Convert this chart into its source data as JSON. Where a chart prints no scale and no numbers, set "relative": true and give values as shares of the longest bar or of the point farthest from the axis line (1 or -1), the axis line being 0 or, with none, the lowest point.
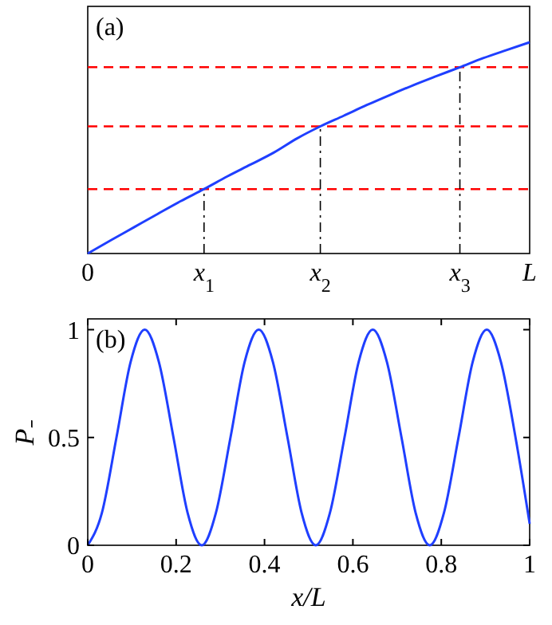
{
  "chart_data": [
    {
      "type": "line",
      "relative": true,
      "categories": [
        "0",
        null,
        null,
        null,
        null,
        "x$_{1}$",
        null,
        null,
        null,
        null,
        "x$_{2}$",
        null,
        null,
        null,
        null,
        null,
        "x$_{3}$",
        null,
        null,
        "L"
      ],
      "series": [
        {
          "color": "#1f3fff",
          "values": [
            0,
            0.063,
            0.125,
            0.187,
            0.248,
            0.305,
            0.365,
            0.421,
            0.478,
            0.545,
            0.602,
            0.652,
            0.703,
            0.751,
            0.797,
            0.84,
            0.882,
            0.925,
            0.963,
            1
          ]
        }
      ],
      "ref_lines": [
        {
          "axis": "y",
          "value": 0.305,
          "color": "#ff0000",
          "line_style": "dashed"
        },
        {
          "axis": "y",
          "value": 0.602,
          "color": "#ff0000",
          "line_style": "dashed"
        },
        {
          "axis": "y",
          "value": 0.882,
          "color": "#ff0000",
          "line_style": "dashed"
        },
        {
          "axis": "x",
          "value": "x$_{1}$",
          "color": "#000000",
          "line_style": "dashdot"
        },
        {
          "axis": "x",
          "value": "x$_{2}$",
          "color": "#000000",
          "line_style": "dashdot"
        },
        {
          "axis": "x",
          "value": "x$_{3}$",
          "color": "#000000",
          "line_style": "dashdot"
        }
      ],
      "annotations": [
        "(a)"
      ],
      "tick_labels": "x"
    },
    {
      "type": "line",
      "xlabel": "x/L",
      "ylabel": "P₋",
      "x": [
        0,
        0.032,
        0.065,
        0.097,
        0.129,
        0.161,
        0.194,
        0.226,
        0.258,
        0.29,
        0.323,
        0.355,
        0.387,
        0.419,
        0.452,
        0.484,
        0.516,
        0.548,
        0.581,
        0.613,
        0.645,
        0.677,
        0.71,
        0.742,
        0.774,
        0.806,
        0.839,
        0.871,
        0.903,
        0.935,
        0.968,
        1
      ],
      "series": [
        {
          "color": "#1f3fff",
          "values": [
            0,
            0.15,
            0.5,
            0.85,
            1,
            0.85,
            0.5,
            0.15,
            0,
            0.15,
            0.5,
            0.85,
            1,
            0.85,
            0.5,
            0.15,
            0,
            0.15,
            0.5,
            0.85,
            1,
            0.85,
            0.5,
            0.15,
            0,
            0.15,
            0.5,
            0.85,
            1,
            0.85,
            0.5,
            0.1
          ]
        }
      ],
      "xlim": [
        0,
        1
      ],
      "xticks": [
        0,
        0.2,
        0.4,
        0.6,
        0.8,
        1
      ],
      "ylim": [
        0,
        1.05
      ],
      "yticks": [
        0,
        0.5,
        1
      ],
      "annotations": [
        "(b)"
      ]
    }
  ]
}
